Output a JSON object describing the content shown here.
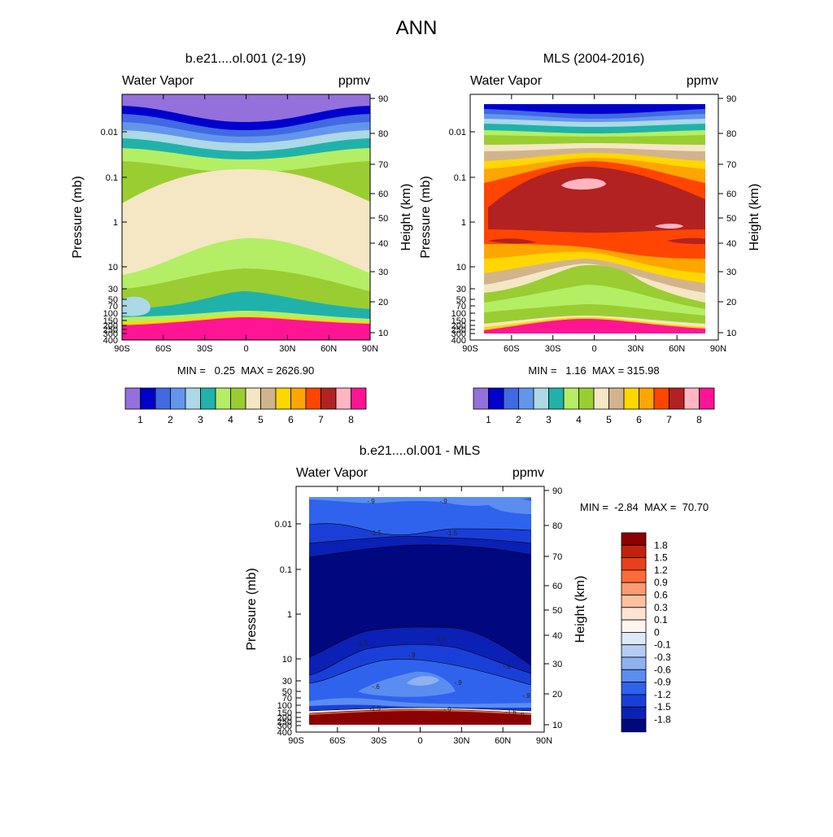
{
  "figure": {
    "title": "ANN"
  },
  "chart_data": [
    {
      "type": "heatmap",
      "title": "b.e21....ol.001 (2-19)",
      "left_string": "Water Vapor",
      "right_string": "ppmv",
      "ylabel": "Pressure (mb)",
      "y2label": "Height (km)",
      "xticks": [
        "90S",
        "60S",
        "30S",
        "0",
        "30N",
        "60N",
        "90N"
      ],
      "yticks": [
        "0.01",
        "0.1",
        "1",
        "10",
        "30",
        "50",
        "70",
        "100",
        "150",
        "200",
        "250",
        "300",
        "400"
      ],
      "y2ticks": [
        "90",
        "80",
        "70",
        "60",
        "50",
        "40",
        "30",
        "20",
        "10"
      ],
      "stats": "MIN =   0.25  MAX = 2626.90",
      "colorbar": {
        "colors": [
          "#9370db",
          "#0000cd",
          "#4169e1",
          "#6495ed",
          "#add8e6",
          "#20b2aa",
          "#b4ee64",
          "#9acd32",
          "#f5e6c4",
          "#d2b48c",
          "#ffd700",
          "#ffa500",
          "#ff4500",
          "#b22222",
          "#ffb6c1",
          "#ff1493"
        ],
        "labels": [
          "1",
          "2",
          "3",
          "4",
          "5",
          "6",
          "7",
          "8"
        ]
      }
    },
    {
      "type": "heatmap",
      "title": "MLS (2004-2016)",
      "left_string": "Water Vapor",
      "right_string": "ppmv",
      "ylabel": "Pressure (mb)",
      "y2label": "Height (km)",
      "xticks": [
        "90S",
        "60S",
        "30S",
        "0",
        "30N",
        "60N",
        "90N"
      ],
      "yticks": [
        "0.01",
        "0.1",
        "1",
        "10",
        "30",
        "50",
        "70",
        "100",
        "150",
        "200",
        "250",
        "300",
        "400"
      ],
      "y2ticks": [
        "90",
        "80",
        "70",
        "60",
        "50",
        "40",
        "30",
        "20",
        "10"
      ],
      "stats": "MIN =   1.16  MAX = 315.98",
      "colorbar": {
        "colors": [
          "#9370db",
          "#0000cd",
          "#4169e1",
          "#6495ed",
          "#add8e6",
          "#20b2aa",
          "#b4ee64",
          "#9acd32",
          "#f5e6c4",
          "#d2b48c",
          "#ffd700",
          "#ffa500",
          "#ff4500",
          "#b22222",
          "#ffb6c1",
          "#ff1493"
        ],
        "labels": [
          "1",
          "2",
          "3",
          "4",
          "5",
          "6",
          "7",
          "8"
        ]
      }
    },
    {
      "type": "heatmap",
      "title": "b.e21....ol.001 - MLS",
      "left_string": "Water Vapor",
      "right_string": "ppmv",
      "ylabel": "Pressure (mb)",
      "y2label": "Height (km)",
      "xticks": [
        "90S",
        "60S",
        "30S",
        "0",
        "30N",
        "60N",
        "90N"
      ],
      "yticks": [
        "0.01",
        "0.1",
        "1",
        "10",
        "30",
        "50",
        "70",
        "100",
        "150",
        "200",
        "250",
        "300",
        "400"
      ],
      "y2ticks": [
        "90",
        "80",
        "70",
        "60",
        "50",
        "40",
        "30",
        "20",
        "10"
      ],
      "stats": "MIN =  -2.84  MAX =  70.70",
      "contour_labels": [
        "-.9",
        "-.9",
        "-1.5",
        "-1.5",
        "-1.5",
        "-1.5",
        "-.9",
        "-.9",
        "-.6",
        "-.9",
        "-.9",
        "-1.5",
        "-.9",
        "-.9",
        "-1.5"
      ],
      "colorbar": {
        "colors": [
          "#8b0000",
          "#c1230d",
          "#e8401b",
          "#fc6a3a",
          "#fc9a72",
          "#fdc0a0",
          "#fde4d2",
          "#fdf6ef",
          "#dce9f8",
          "#b5cdf3",
          "#8fb1ef",
          "#5b8cf0",
          "#2f63ee",
          "#1a3fd8",
          "#0b20b4",
          "#00087f"
        ],
        "labels": [
          "1.8",
          "1.5",
          "1.2",
          "0.9",
          "0.6",
          "0.3",
          "0.1",
          "0",
          "-0.1",
          "-0.3",
          "-0.6",
          "-0.9",
          "-1.2",
          "-1.5",
          "-1.8"
        ]
      }
    }
  ]
}
